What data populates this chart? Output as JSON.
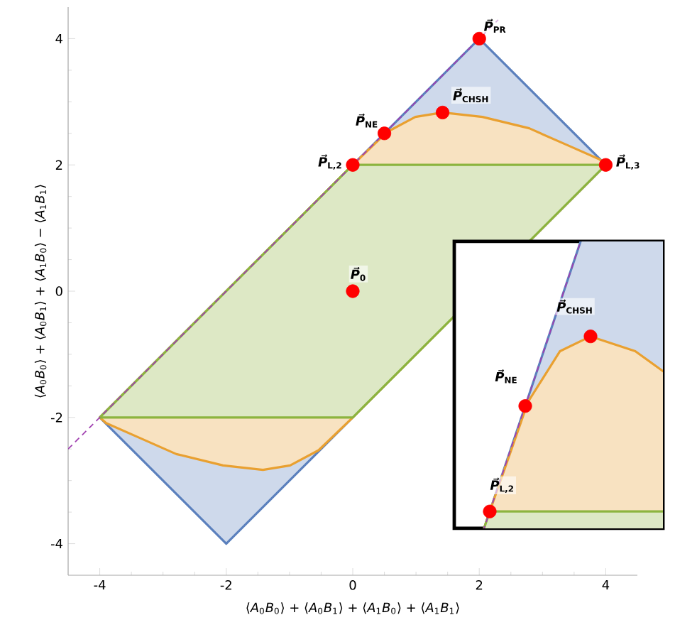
{
  "chart_data": [
    {
      "type": "area",
      "xlabel": "⟨*A*$_{0}$*B*$_{0}$⟩ + ⟨*A*$_{0}$*B*$_{1}$⟩ + ⟨*A*$_{1}$*B*$_{0}$⟩ + ⟨*A*$_{1}$*B*$_{1}$⟩",
      "ylabel": "⟨*A*$_{0}$*B*$_{0}$⟩ + ⟨*A*$_{0}$*B*$_{1}$⟩ + ⟨*A*$_{1}$*B*$_{0}$⟩ − ⟨*A*$_{1}$*B*$_{1}$⟩",
      "xlim": [
        -4.5,
        4.5
      ],
      "ylim": [
        -4.5,
        4.5
      ],
      "xticks": [
        -4,
        -2,
        0,
        2,
        4
      ],
      "yticks": [
        -4,
        -2,
        0,
        2,
        4
      ],
      "series": [
        {
          "color": "#5b80bd",
          "x": [
            -4,
            -2,
            4,
            2,
            -4
          ],
          "values": [
            -2,
            -4,
            2,
            4,
            -2
          ]
        },
        {
          "color": "#e9a030",
          "x": [
            0,
            0.54,
            0.99,
            1.42,
            2.05,
            2.79,
            3.4,
            3.9,
            4,
            0,
            -0.54,
            -0.99,
            -1.42,
            -2.05,
            -2.79,
            -3.4,
            -3.9,
            -4,
            0
          ],
          "values": [
            2,
            2.52,
            2.76,
            2.83,
            2.76,
            2.58,
            2.31,
            2.09,
            2,
            -2,
            -2.52,
            -2.76,
            -2.83,
            -2.76,
            -2.58,
            -2.31,
            -2.09,
            -2,
            2
          ]
        },
        {
          "color": "#8cb43f",
          "x": [
            -4,
            0,
            4,
            0,
            -4
          ],
          "values": [
            -2,
            -2,
            2,
            2,
            -2
          ]
        },
        {
          "type": "line",
          "color": "#a040b0",
          "line_style": "dashed",
          "x": [
            -4.5,
            2.3
          ],
          "values": [
            -2.5,
            4.3
          ]
        },
        {
          "type": "scatter",
          "marker": "circle",
          "color": "#ff0000",
          "name": "*P⃗*$_{PR}$",
          "x": [
            2
          ],
          "values": [
            4
          ]
        },
        {
          "type": "scatter",
          "marker": "circle",
          "color": "#ff0000",
          "name": "*P⃗*$_{CHSH}$",
          "x": [
            1.42
          ],
          "values": [
            2.83
          ]
        },
        {
          "type": "scatter",
          "marker": "circle",
          "color": "#ff0000",
          "name": "*P⃗*$_{NE}$",
          "x": [
            0.5
          ],
          "values": [
            2.5
          ]
        },
        {
          "type": "scatter",
          "marker": "circle",
          "color": "#ff0000",
          "name": "*P⃗*$_{L,2}$",
          "x": [
            0
          ],
          "values": [
            2
          ]
        },
        {
          "type": "scatter",
          "marker": "circle",
          "color": "#ff0000",
          "name": "*P⃗*$_{L,3}$",
          "x": [
            4
          ],
          "values": [
            2
          ]
        },
        {
          "type": "scatter",
          "marker": "circle",
          "color": "#ff0000",
          "name": "*P⃗*$_{0}$",
          "x": [
            0
          ],
          "values": [
            0
          ]
        }
      ]
    },
    {
      "type": "other",
      "annotations": [
        "*P⃗*$_{CHSH}$",
        "*P⃗*$_{NE}$",
        "*P⃗*$_{L,2}$"
      ]
    }
  ]
}
